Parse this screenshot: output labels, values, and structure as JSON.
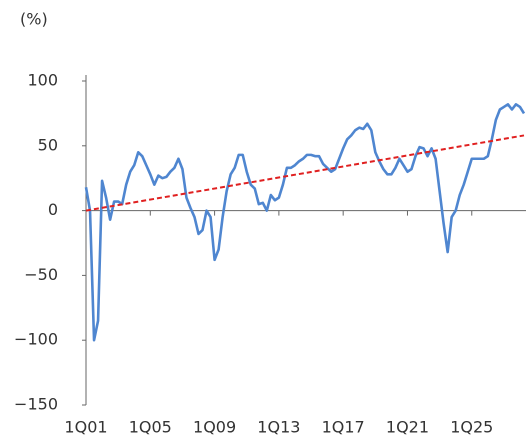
{
  "chart_data": {
    "type": "line",
    "y_unit_label": "(%)",
    "categories": [
      "1Q01",
      null,
      null,
      null,
      null,
      null,
      null,
      null,
      null,
      null,
      null,
      null,
      null,
      null,
      null,
      null,
      "1Q05",
      null,
      null,
      null,
      null,
      null,
      null,
      null,
      null,
      null,
      null,
      null,
      null,
      null,
      null,
      null,
      "1Q09",
      null,
      null,
      null,
      null,
      null,
      null,
      null,
      null,
      null,
      null,
      null,
      null,
      null,
      null,
      null,
      "1Q13",
      null,
      null,
      null,
      null,
      null,
      null,
      null,
      null,
      null,
      null,
      null,
      null,
      null,
      null,
      null,
      "1Q17",
      null,
      null,
      null,
      null,
      null,
      null,
      null,
      null,
      null,
      null,
      null,
      null,
      null,
      null,
      null,
      "1Q21",
      null,
      null,
      null,
      null,
      null,
      null,
      null,
      null,
      null,
      null,
      null,
      null,
      null,
      null,
      null,
      "1Q25",
      null,
      null,
      null,
      null,
      null,
      null,
      null,
      null,
      null,
      null,
      null,
      null,
      null
    ],
    "series": [
      {
        "color": "#4f86d0",
        "values": [
          18,
          0,
          -100,
          -85,
          23,
          10,
          -7,
          7,
          7,
          5,
          20,
          30,
          35,
          45,
          42,
          35,
          28,
          20,
          27,
          25,
          26,
          30,
          33,
          40,
          32,
          10,
          2,
          -5,
          -18,
          -15,
          0,
          -5,
          -38,
          -30,
          -5,
          15,
          28,
          33,
          43,
          43,
          30,
          20,
          17,
          5,
          6,
          0,
          12,
          8,
          10,
          20,
          33,
          33,
          35,
          38,
          40,
          43,
          43,
          42,
          42,
          36,
          33,
          30,
          32,
          40,
          48,
          55,
          58,
          62,
          64,
          63,
          67,
          62,
          45,
          38,
          32,
          28,
          28,
          33,
          40,
          35,
          30,
          32,
          42,
          49,
          48,
          42,
          48,
          40,
          15,
          -10,
          -32,
          -5,
          0,
          12,
          20,
          30,
          40,
          40,
          40,
          40,
          42,
          55,
          70,
          78,
          80,
          82,
          78,
          82,
          80,
          75
        ]
      }
    ],
    "trend_line": {
      "start": 0,
      "end": 58,
      "color": "#e02020"
    },
    "ylim": [
      -150,
      100
    ],
    "yticks": [
      {
        "value": -150,
        "label": "−150"
      },
      {
        "value": -100,
        "label": "−100"
      },
      {
        "value": -50,
        "label": "−50"
      },
      0,
      50,
      100
    ]
  }
}
